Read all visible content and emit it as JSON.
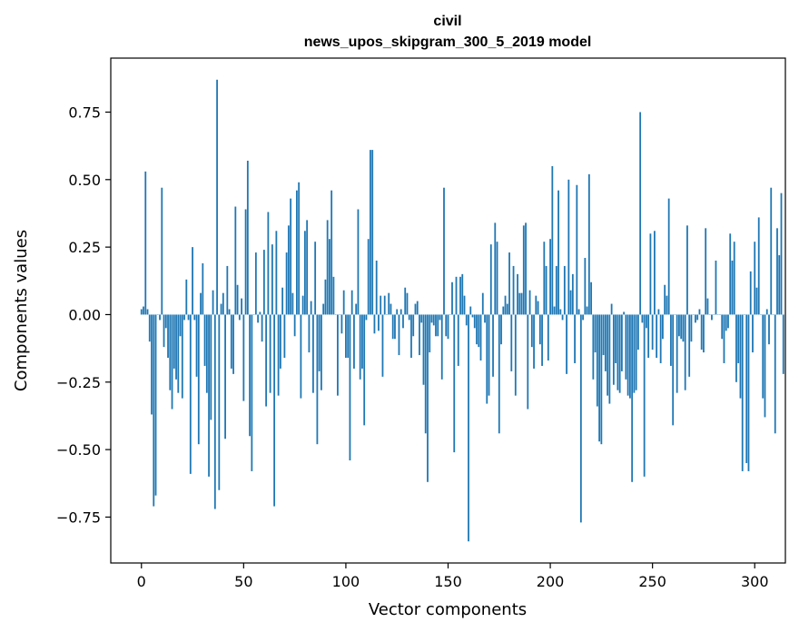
{
  "chart_data": {
    "type": "bar",
    "title": "civil",
    "subtitle": "news_upos_skipgram_300_5_2019 model",
    "xlabel": "Vector components",
    "ylabel": "Components values",
    "xlim": [
      -15,
      315
    ],
    "ylim": [
      -0.92,
      0.95
    ],
    "xticks": [
      0,
      50,
      100,
      150,
      200,
      250,
      300
    ],
    "yticks": [
      -0.75,
      -0.5,
      -0.25,
      0.0,
      0.25,
      0.5,
      0.75
    ],
    "ytick_labels": [
      "−0.75",
      "−0.50",
      "−0.25",
      "0.00",
      "0.25",
      "0.50",
      "0.75"
    ],
    "bar_color": "#1f77b4",
    "grid": false,
    "values": [
      0.02,
      0.03,
      0.53,
      0.02,
      -0.1,
      -0.37,
      -0.71,
      -0.67,
      0.0,
      -0.02,
      0.47,
      -0.12,
      -0.05,
      -0.16,
      -0.28,
      -0.35,
      -0.2,
      -0.24,
      -0.29,
      -0.08,
      -0.31,
      -0.02,
      0.13,
      -0.02,
      -0.59,
      0.25,
      -0.02,
      -0.23,
      -0.48,
      0.08,
      0.19,
      -0.19,
      -0.29,
      -0.6,
      -0.39,
      0.09,
      -0.72,
      0.87,
      -0.65,
      0.04,
      0.08,
      -0.46,
      0.18,
      0.02,
      -0.2,
      -0.22,
      0.4,
      0.11,
      -0.02,
      0.06,
      -0.32,
      0.39,
      0.57,
      -0.45,
      -0.58,
      0.0,
      0.23,
      -0.03,
      0.01,
      -0.1,
      0.24,
      -0.34,
      0.38,
      -0.29,
      0.26,
      -0.71,
      0.31,
      -0.3,
      -0.2,
      0.1,
      -0.16,
      0.23,
      0.33,
      0.43,
      0.08,
      -0.08,
      0.46,
      0.49,
      -0.31,
      0.07,
      0.31,
      0.35,
      -0.14,
      0.05,
      -0.29,
      0.27,
      -0.48,
      -0.21,
      -0.28,
      0.04,
      0.13,
      0.35,
      0.28,
      0.46,
      0.14,
      0.0,
      -0.3,
      0.0,
      -0.07,
      0.09,
      -0.16,
      -0.16,
      -0.54,
      0.09,
      -0.2,
      0.04,
      0.39,
      -0.24,
      -0.2,
      -0.41,
      -0.02,
      0.28,
      0.61,
      0.61,
      -0.07,
      0.2,
      -0.06,
      0.07,
      -0.23,
      0.07,
      0.0,
      0.08,
      0.04,
      -0.09,
      -0.09,
      0.02,
      -0.15,
      0.02,
      -0.05,
      0.1,
      0.08,
      -0.02,
      -0.16,
      -0.08,
      0.04,
      0.05,
      -0.15,
      -0.03,
      -0.26,
      -0.44,
      -0.62,
      -0.14,
      -0.03,
      -0.04,
      -0.08,
      -0.08,
      -0.02,
      -0.24,
      0.47,
      -0.08,
      -0.09,
      0.0,
      0.12,
      -0.51,
      0.14,
      -0.19,
      0.14,
      0.15,
      0.07,
      -0.04,
      -0.84,
      0.03,
      -0.01,
      -0.05,
      -0.11,
      -0.12,
      -0.17,
      0.08,
      -0.03,
      -0.33,
      -0.3,
      0.26,
      -0.23,
      0.34,
      0.27,
      -0.44,
      -0.11,
      0.03,
      0.07,
      0.04,
      0.23,
      -0.21,
      0.18,
      -0.3,
      0.15,
      0.08,
      0.08,
      0.33,
      0.34,
      -0.35,
      0.09,
      -0.12,
      -0.2,
      0.07,
      0.05,
      -0.11,
      -0.19,
      0.27,
      0.18,
      -0.17,
      0.28,
      0.55,
      0.03,
      0.18,
      0.46,
      0.02,
      -0.02,
      0.18,
      -0.22,
      0.5,
      0.09,
      0.15,
      -0.18,
      0.48,
      0.02,
      -0.77,
      -0.02,
      0.21,
      0.03,
      0.52,
      0.12,
      -0.24,
      -0.14,
      -0.34,
      -0.47,
      -0.48,
      -0.15,
      -0.21,
      -0.3,
      -0.33,
      0.04,
      -0.26,
      -0.18,
      -0.28,
      -0.29,
      -0.21,
      0.01,
      -0.24,
      -0.3,
      -0.31,
      -0.62,
      -0.29,
      -0.28,
      -0.13,
      0.75,
      -0.03,
      -0.6,
      -0.05,
      -0.16,
      0.3,
      -0.13,
      0.31,
      -0.16,
      0.02,
      -0.18,
      -0.09,
      0.11,
      0.07,
      0.43,
      -0.19,
      -0.41,
      0.0,
      -0.29,
      -0.08,
      -0.09,
      -0.1,
      -0.28,
      0.33,
      -0.23,
      -0.1,
      0.0,
      -0.03,
      -0.02,
      0.02,
      -0.13,
      -0.14,
      0.32,
      0.06,
      0.0,
      -0.02,
      0.0,
      0.2,
      0.0,
      0.0,
      -0.09,
      -0.18,
      -0.06,
      -0.05,
      0.3,
      0.2,
      0.27,
      -0.25,
      -0.18,
      -0.31,
      -0.58,
      0.0,
      -0.55,
      -0.58,
      0.16,
      -0.14,
      0.27,
      0.1,
      0.36,
      0.0,
      -0.31,
      -0.38,
      0.02,
      -0.11,
      0.47,
      0.0,
      -0.44,
      0.32,
      0.22,
      0.45,
      -0.22
    ]
  }
}
